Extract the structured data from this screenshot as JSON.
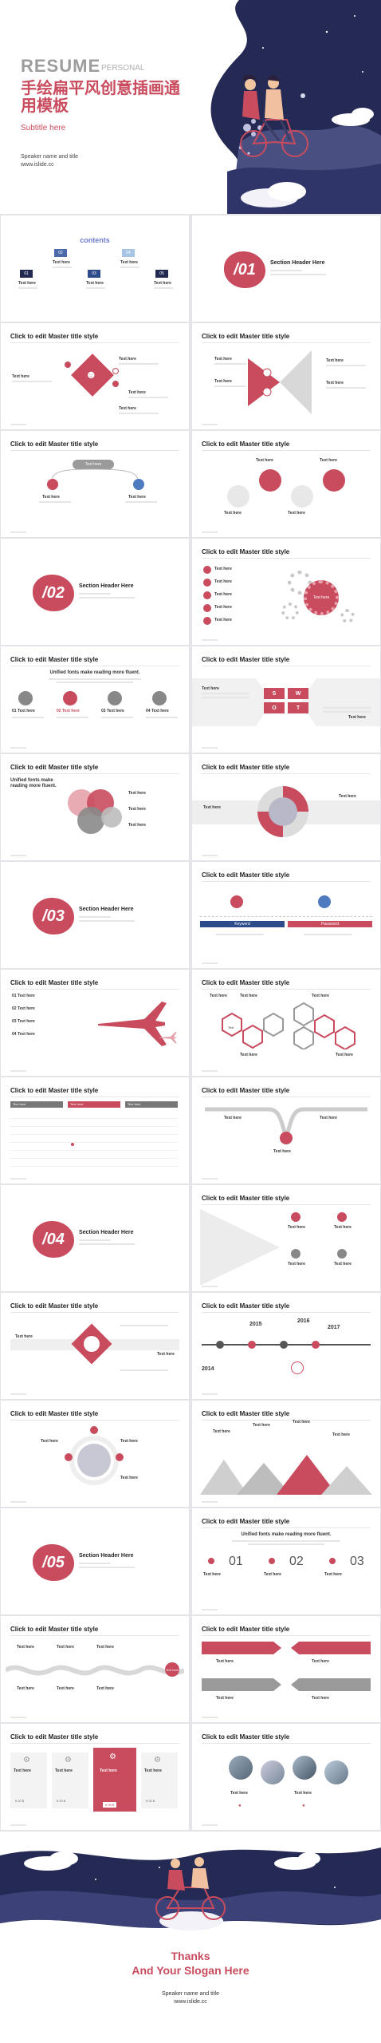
{
  "cover": {
    "resume": "RESUME",
    "personal": "PERSONAL",
    "title_line1": "手绘扁平风创意插画通",
    "title_line2": "用模板",
    "subtitle": "Subtitle here",
    "speaker": "Speaker name and title",
    "site": "www.islide.cc"
  },
  "common": {
    "master_title": "Click to edit Master title style",
    "text_here": "Text here",
    "section_header": "Section Header Here",
    "unified": "Unified fonts make reading more fluent."
  },
  "contents": {
    "title": "contents",
    "items": [
      {
        "num": "01",
        "label": "Text here"
      },
      {
        "num": "02",
        "label": "Text here"
      },
      {
        "num": "03",
        "label": "Text here"
      },
      {
        "num": "04",
        "label": "Text here"
      },
      {
        "num": "05",
        "label": "Text here"
      }
    ]
  },
  "sections": [
    "/01",
    "/02",
    "/03",
    "/04",
    "/05"
  ],
  "swot": [
    "S",
    "W",
    "O",
    "T"
  ],
  "list_items": [
    "01 Text here",
    "02 Text here",
    "03 Text here",
    "04 Text here"
  ],
  "timeline_years": [
    "2014",
    "2015",
    "2016",
    "2017"
  ],
  "numbers": [
    "01",
    "02",
    "03"
  ],
  "table_heads": [
    "Text here",
    "Text here",
    "Text here"
  ],
  "prices": [
    "¥ 20 $",
    "¥ 20 $",
    "¥ 99 $",
    "¥ 20 $"
  ],
  "keyword": "Keyword",
  "password": "Password",
  "hex": "Text",
  "unified_short": "Unified fonts make reading more fluent.",
  "end": {
    "thanks": "Thanks",
    "slogan": "And Your Slogan Here",
    "speaker": "Speaker name and title",
    "site": "www.islide.cc"
  },
  "colors": {
    "accent": "#c94b5e",
    "navy": "#232a52",
    "grey": "#9a9a9a"
  }
}
